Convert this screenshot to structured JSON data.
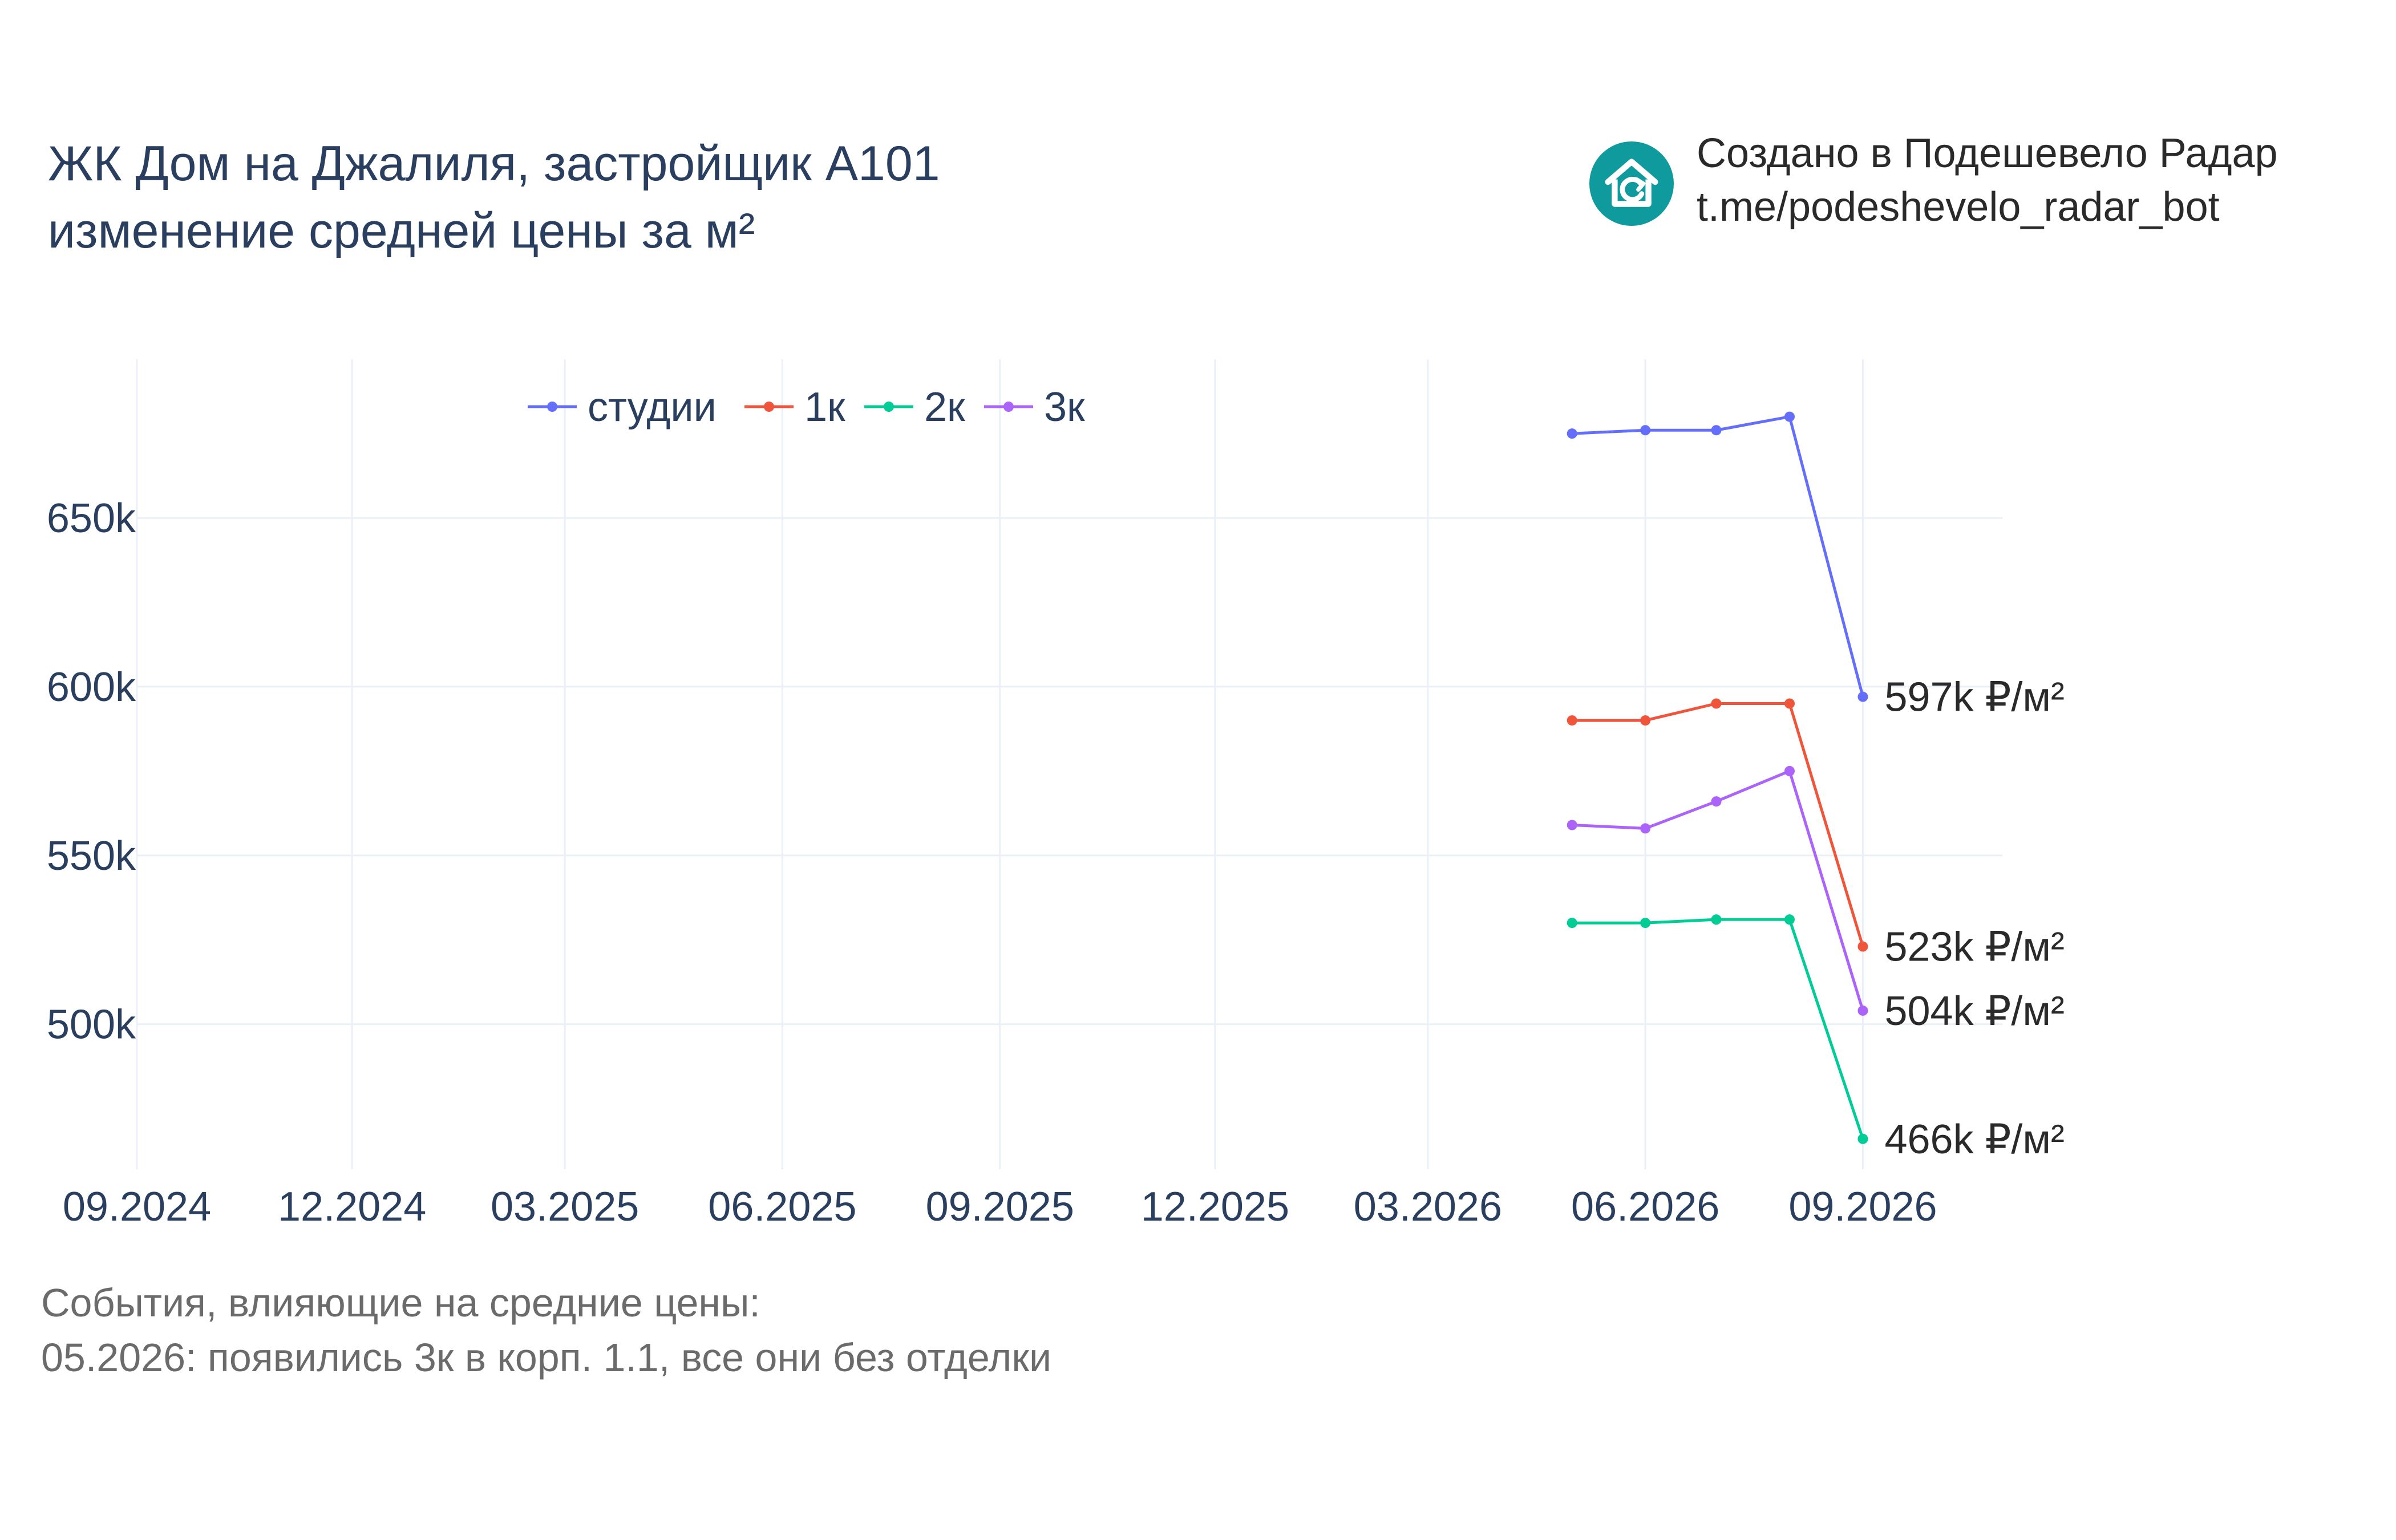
{
  "header": {
    "title_line1": "ЖК Дом на Джалиля, застройщик А101",
    "title_line2": "изменение средней цены за м²"
  },
  "brand": {
    "line1": "Создано в Подешевело Радар",
    "line2": "t.me/podeshevelo_radar_bot",
    "logo_icon": "house-refresh-icon",
    "logo_color": "#0f9a9d"
  },
  "footer": {
    "heading": "События, влияющие на средние цены:",
    "events": [
      "05.2026: появились 3к в корп. 1.1, все они без отделки"
    ]
  },
  "chart_data": {
    "type": "line",
    "x_ticks": [
      "09.2024",
      "12.2024",
      "03.2025",
      "06.2025",
      "09.2025",
      "12.2025",
      "03.2026",
      "06.2026",
      "09.2026"
    ],
    "y_ticks": [
      {
        "value": 500000,
        "label": "500k"
      },
      {
        "value": 550000,
        "label": "550k"
      },
      {
        "value": 600000,
        "label": "600k"
      },
      {
        "value": 650000,
        "label": "650k"
      }
    ],
    "x_range": [
      "2024-09-01",
      "2026-10-30"
    ],
    "y_range": [
      457000,
      697000
    ],
    "grid": true,
    "legend_position": "top-center",
    "x": [
      "2026-05-01",
      "2026-06-01",
      "2026-07-01",
      "2026-08-01",
      "2026-09-01"
    ],
    "series": [
      {
        "name": "студии",
        "color": "#636efa",
        "values": [
          675000,
          676000,
          676000,
          680000,
          597000
        ],
        "end_label": "597k ₽/м²"
      },
      {
        "name": "1к",
        "color": "#ef553b",
        "values": [
          590000,
          590000,
          595000,
          595000,
          523000
        ],
        "end_label": "523k ₽/м²"
      },
      {
        "name": "2к",
        "color": "#00cc96",
        "values": [
          530000,
          530000,
          531000,
          531000,
          466000
        ],
        "end_label": "466k ₽/м²"
      },
      {
        "name": "3к",
        "color": "#ab63fa",
        "values": [
          559000,
          558000,
          566000,
          575000,
          504000
        ],
        "end_label": "504k ₽/м²"
      }
    ]
  }
}
